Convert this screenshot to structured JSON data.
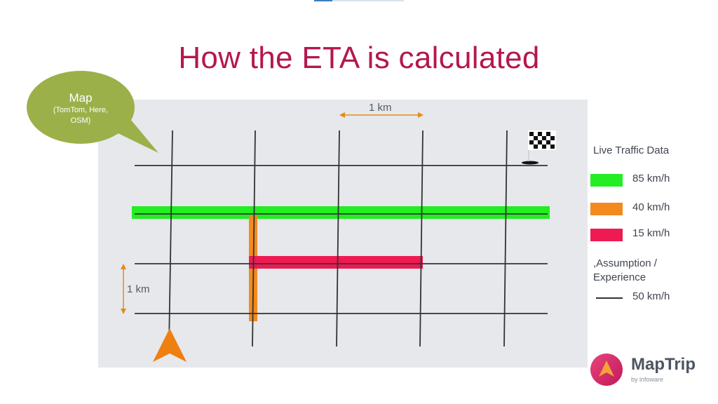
{
  "slide": {
    "title": "How the ETA is calculated"
  },
  "bubble": {
    "title": "Map",
    "subtitle": "(TomTom, Here, OSM)"
  },
  "scale": {
    "horizontal_label": "1 km",
    "vertical_label": "1 km"
  },
  "legend": {
    "title": "Live Traffic Data",
    "items": [
      {
        "label": "85 km/h",
        "color": "#22ee22"
      },
      {
        "label": "40 km/h",
        "color": "#f28a1e"
      },
      {
        "label": "15 km/h",
        "color": "#ee1a52"
      }
    ],
    "assumption_label": ",Assumption / Experience",
    "assumption_speed": "50 km/h"
  },
  "logo": {
    "name": "MapTrip",
    "tagline": "by infoware"
  },
  "colors": {
    "title": "#b5174f",
    "bubble": "#9cb04a",
    "scale_arrow": "#e38a1e",
    "road": "#333333",
    "nav_arrow": "#ee8011"
  },
  "icons": [
    "navigation-arrow-icon",
    "checkered-flag-icon",
    "maptrip-logo-icon"
  ]
}
